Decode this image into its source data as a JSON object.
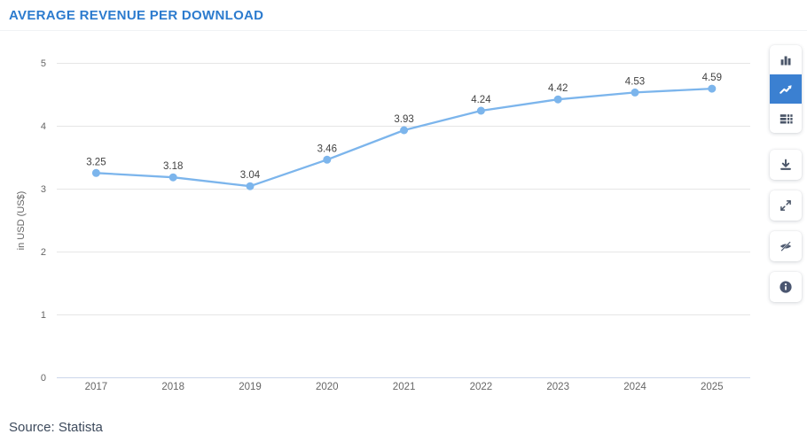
{
  "header": {
    "title": "AVERAGE REVENUE PER DOWNLOAD"
  },
  "source": {
    "text": "Source: Statista"
  },
  "toolbar": {
    "chart_type_buttons": [
      {
        "name": "bar-chart",
        "active": false
      },
      {
        "name": "line-chart",
        "active": true
      },
      {
        "name": "table",
        "active": false
      }
    ],
    "action_buttons": [
      "download",
      "fullscreen",
      "toggle-visibility",
      "info"
    ],
    "active_color": "#3b80d1",
    "icon_color": "#4a5568"
  },
  "chart_data": {
    "type": "line",
    "title": "AVERAGE REVENUE PER DOWNLOAD",
    "categories": [
      "2017",
      "2018",
      "2019",
      "2020",
      "2021",
      "2022",
      "2023",
      "2024",
      "2025"
    ],
    "values": [
      3.25,
      3.18,
      3.04,
      3.46,
      3.93,
      4.24,
      4.42,
      4.53,
      4.59
    ],
    "xlabel": "",
    "ylabel": "in USD (US$)",
    "ylim": [
      0,
      5
    ],
    "yticks": [
      0,
      1,
      2,
      3,
      4,
      5
    ],
    "grid": true,
    "legend": "none",
    "colors": {
      "line": "#7cb5ec",
      "marker": "#7cb5ec",
      "grid": "#e6e6e6",
      "axis_line": "#ccd6eb",
      "tick_label": "#666666",
      "axis_title": "#666666",
      "data_label": "#424242"
    }
  }
}
